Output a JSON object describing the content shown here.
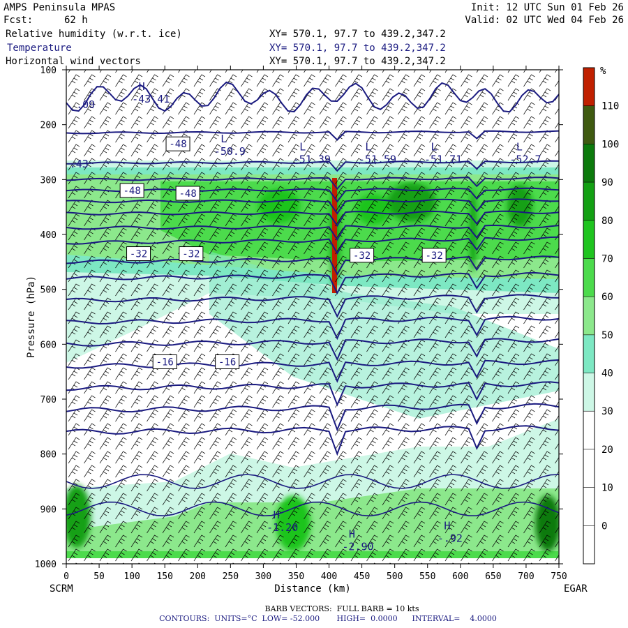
{
  "header": {
    "model": "AMPS Peninsula MPAS",
    "forecast_label": "Fcst:",
    "forecast_value": "62 h",
    "init": "Init: 12 UTC Sun 01 Feb 26",
    "valid": "Valid: 02 UTC Wed 04 Feb 26",
    "fields": [
      {
        "label": "Relative humidity (w.r.t. ice)",
        "xy": "XY= 570.1, 97.7 to 439.2,347.2"
      },
      {
        "label": "Temperature",
        "xy": "XY= 570.1, 97.7 to 439.2,347.2"
      },
      {
        "label": "Horizontal wind vectors",
        "xy": "XY= 570.1, 97.7 to 439.2,347.2"
      }
    ]
  },
  "footer": {
    "barbs": "BARB VECTORS:  FULL BARB = 10 kts",
    "contours": "CONTOURS:  UNITS=°C  LOW= -52.000       HIGH=  0.0000      INTERVAL=    4.0000"
  },
  "colors": {
    "navy": "#1a1a80",
    "rh": [
      "#ffffff",
      "#ffffff",
      "#ffffff",
      "#ffffff",
      "#cdf7e6",
      "#7de8c3",
      "#8ce88c",
      "#4cdb4c",
      "#1fc41f",
      "#13a013",
      "#0c7a0c",
      "#3f5a10",
      "#c02000"
    ]
  },
  "chart_data": {
    "type": "cross-section",
    "xlabel": "Distance (km)",
    "ylabel": "Pressure (hPa)",
    "x_range": [
      0,
      750
    ],
    "y_range": [
      1000,
      100
    ],
    "x_ticks": [
      0,
      50,
      100,
      150,
      200,
      250,
      300,
      350,
      400,
      450,
      500,
      550,
      600,
      650,
      700,
      750
    ],
    "y_ticks": [
      100,
      200,
      300,
      400,
      500,
      600,
      700,
      800,
      900,
      1000
    ],
    "left_endpoint": "SCRM",
    "right_endpoint": "EGAR",
    "colorbar": {
      "unit": "%",
      "labels": [
        110,
        100,
        90,
        80,
        70,
        60,
        50,
        40,
        30,
        20,
        10,
        0
      ]
    },
    "temperature_labels": [
      {
        "text": "-48",
        "x": 170,
        "p": 235
      },
      {
        "text": "-48",
        "x": 100,
        "p": 320
      },
      {
        "text": "-48",
        "x": 185,
        "p": 325
      },
      {
        "text": "-32",
        "x": 110,
        "p": 435
      },
      {
        "text": "-32",
        "x": 190,
        "p": 435
      },
      {
        "text": "-32",
        "x": 450,
        "p": 438
      },
      {
        "text": "-32",
        "x": 560,
        "p": 438
      },
      {
        "text": "-16",
        "x": 150,
        "p": 632
      },
      {
        "text": "-16",
        "x": 245,
        "p": 632
      }
    ],
    "extrema": [
      {
        "kind": "H",
        "value": "-43.41",
        "x": 100,
        "p": 160
      },
      {
        "kind": "",
        "value": ".09",
        "x": 15,
        "p": 170
      },
      {
        "kind": "L",
        "value": "-50.9",
        "x": 225,
        "p": 255
      },
      {
        "kind": "",
        "value": ".43",
        "x": 5,
        "p": 278
      },
      {
        "kind": "L",
        "value": "-51.39",
        "x": 345,
        "p": 270
      },
      {
        "kind": "L",
        "value": "-51.59",
        "x": 445,
        "p": 270
      },
      {
        "kind": "L",
        "value": "-51.71",
        "x": 545,
        "p": 270
      },
      {
        "kind": "L",
        "value": "-52.7",
        "x": 675,
        "p": 270
      },
      {
        "kind": "H",
        "value": "-1.20",
        "x": 305,
        "p": 940
      },
      {
        "kind": "H",
        "value": "-2.90",
        "x": 420,
        "p": 975
      },
      {
        "kind": "H",
        "value": "-.92",
        "x": 565,
        "p": 960
      }
    ]
  }
}
